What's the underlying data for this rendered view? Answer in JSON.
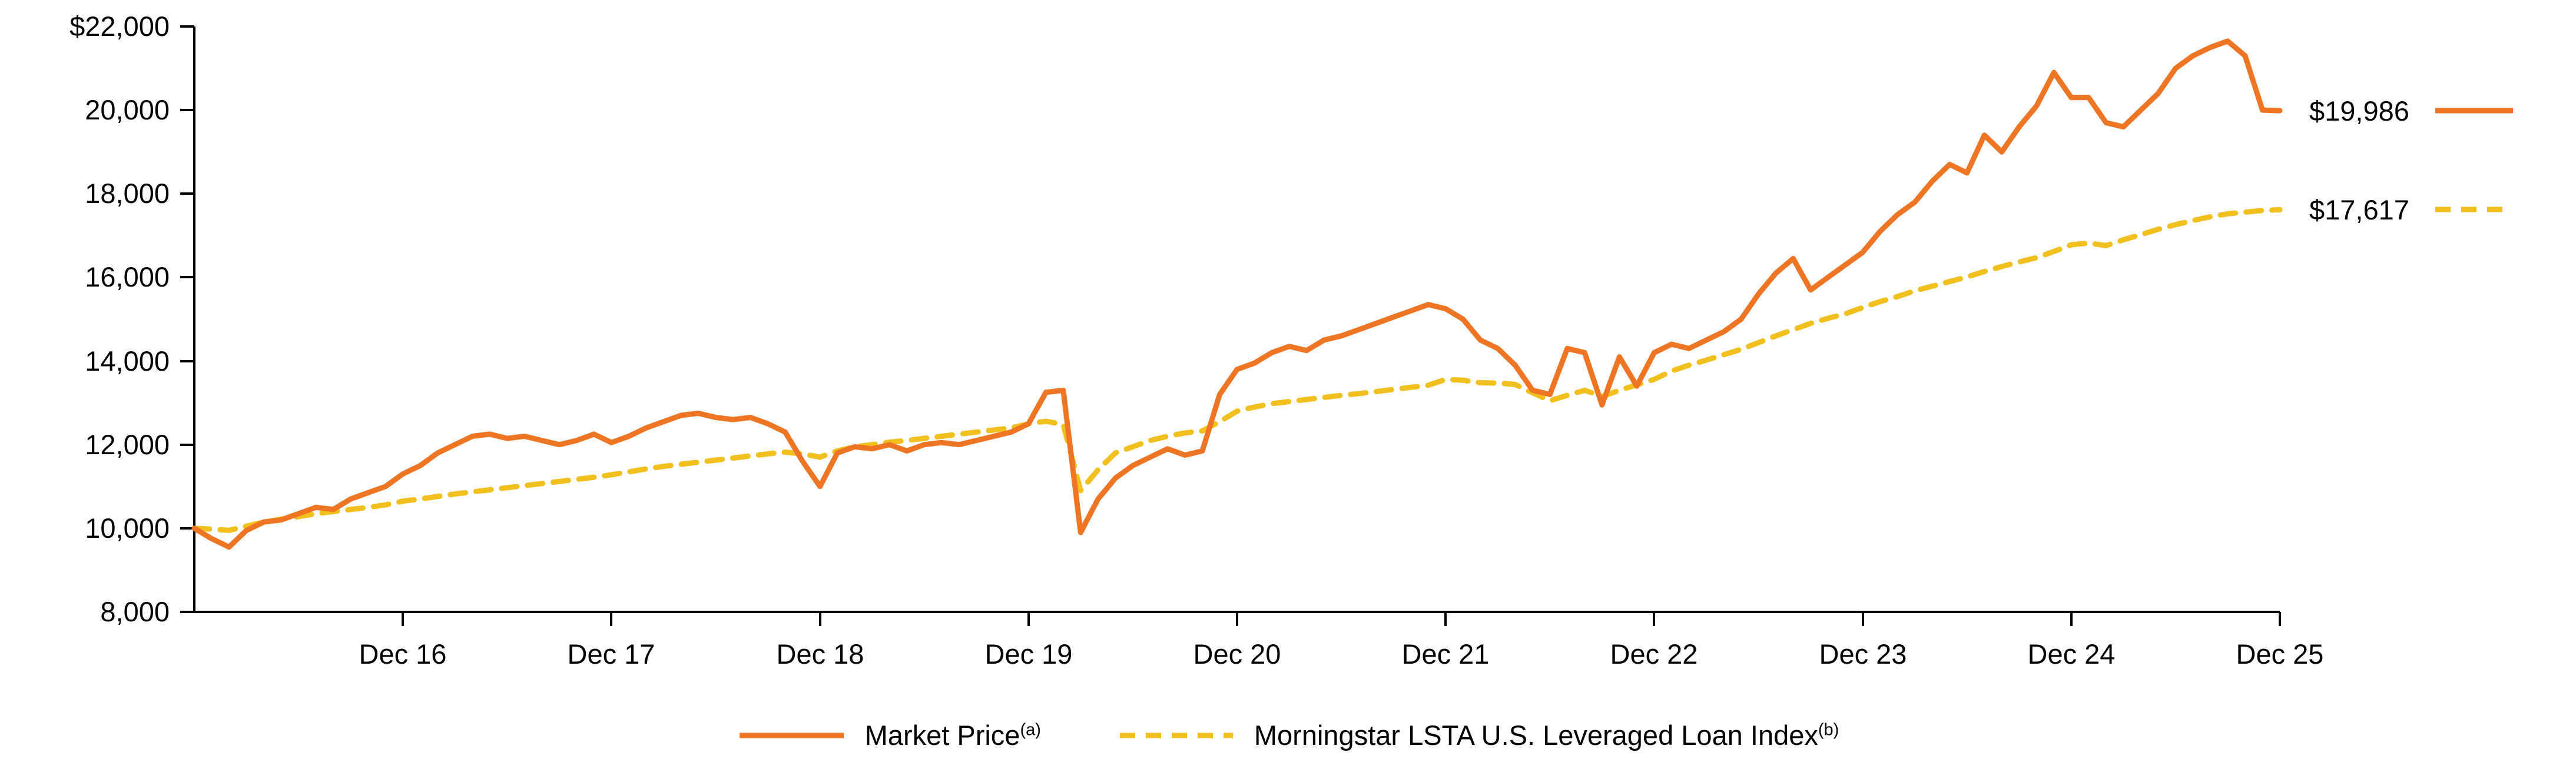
{
  "chart": {
    "y_axis": {
      "labels": [
        "$22,000",
        "20,000",
        "18,000",
        "16,000",
        "14,000",
        "12,000",
        "10,000",
        "8,000"
      ]
    },
    "x_axis": {
      "labels": [
        "Dec 16",
        "Dec 17",
        "Dec 18",
        "Dec 19",
        "Dec 20",
        "Dec 21",
        "Dec 22",
        "Dec 23",
        "Dec 24",
        "Dec 25"
      ]
    },
    "end_labels": {
      "market_price": "$19,986",
      "index": "$17,617"
    },
    "legend": {
      "market_label": "Market Price",
      "market_sup": "(a)",
      "index_label": "Morningstar LSTA U.S. Leveraged Loan Index",
      "index_sup": "(b)"
    },
    "colors": {
      "market_price": "#EE7524",
      "index": "#F2C01E",
      "axis": "#000000"
    }
  },
  "chart_data": {
    "type": "line",
    "title": "",
    "xlabel": "",
    "ylabel": "",
    "x_unit": "monthly points from Dec 2015 through Dec 2025",
    "x_tick_labels": [
      "Dec 16",
      "Dec 17",
      "Dec 18",
      "Dec 19",
      "Dec 20",
      "Dec 21",
      "Dec 22",
      "Dec 23",
      "Dec 24",
      "Dec 25"
    ],
    "ylim": [
      8000,
      22000
    ],
    "y_ticks": [
      8000,
      10000,
      12000,
      14000,
      16000,
      18000,
      20000,
      22000
    ],
    "grid": false,
    "legend_position": "bottom",
    "end_values": {
      "market_price": 19986,
      "index": 17617
    },
    "series": [
      {
        "name": "Market Price",
        "color": "#EE7524",
        "dash": false,
        "values": [
          10000,
          9750,
          9550,
          9950,
          10150,
          10200,
          10350,
          10500,
          10450,
          10700,
          10850,
          11000,
          11300,
          11500,
          11800,
          12000,
          12200,
          12250,
          12150,
          12200,
          12100,
          12000,
          12100,
          12250,
          12050,
          12200,
          12400,
          12550,
          12700,
          12750,
          12650,
          12600,
          12650,
          12500,
          12300,
          11600,
          11000,
          11800,
          11950,
          11900,
          12000,
          11850,
          12000,
          12050,
          12000,
          12100,
          12200,
          12300,
          12500,
          13250,
          13300,
          9900,
          10700,
          11200,
          11500,
          11700,
          11900,
          11750,
          11850,
          13200,
          13800,
          13950,
          14200,
          14350,
          14250,
          14500,
          14600,
          14750,
          14900,
          15050,
          15200,
          15350,
          15250,
          15000,
          14500,
          14300,
          13900,
          13300,
          13200,
          14300,
          14200,
          12950,
          14100,
          13400,
          14200,
          14400,
          14300,
          14500,
          14700,
          15000,
          15600,
          16100,
          16450,
          15700,
          16000,
          16300,
          16600,
          17100,
          17500,
          17800,
          18300,
          18700,
          18500,
          19400,
          19000,
          19600,
          20100,
          20900,
          20300,
          20300,
          19700,
          19600,
          20000,
          20400,
          21000,
          21300,
          21500,
          21650,
          21300,
          20000,
          19986
        ]
      },
      {
        "name": "Morningstar LSTA U.S. Leveraged Loan Index",
        "color": "#F2C01E",
        "dash": true,
        "values": [
          10000,
          9980,
          9950,
          10050,
          10150,
          10220,
          10280,
          10350,
          10400,
          10450,
          10500,
          10560,
          10650,
          10700,
          10760,
          10820,
          10870,
          10920,
          10970,
          11020,
          11070,
          11120,
          11170,
          11220,
          11280,
          11350,
          11420,
          11480,
          11530,
          11580,
          11630,
          11680,
          11730,
          11780,
          11820,
          11780,
          11700,
          11850,
          11950,
          12000,
          12060,
          12100,
          12150,
          12200,
          12250,
          12300,
          12350,
          12400,
          12500,
          12560,
          12480,
          10900,
          11400,
          11800,
          11950,
          12100,
          12200,
          12280,
          12330,
          12550,
          12800,
          12900,
          12980,
          13030,
          13080,
          13130,
          13180,
          13220,
          13270,
          13320,
          13370,
          13420,
          13560,
          13540,
          13480,
          13470,
          13440,
          13240,
          13050,
          13180,
          13300,
          13150,
          13300,
          13430,
          13560,
          13760,
          13900,
          14020,
          14150,
          14280,
          14440,
          14600,
          14750,
          14900,
          15020,
          15130,
          15280,
          15420,
          15540,
          15680,
          15790,
          15900,
          16010,
          16140,
          16260,
          16370,
          16470,
          16620,
          16780,
          16820,
          16760,
          16900,
          17020,
          17150,
          17260,
          17360,
          17450,
          17520,
          17560,
          17600,
          17617
        ]
      }
    ]
  }
}
